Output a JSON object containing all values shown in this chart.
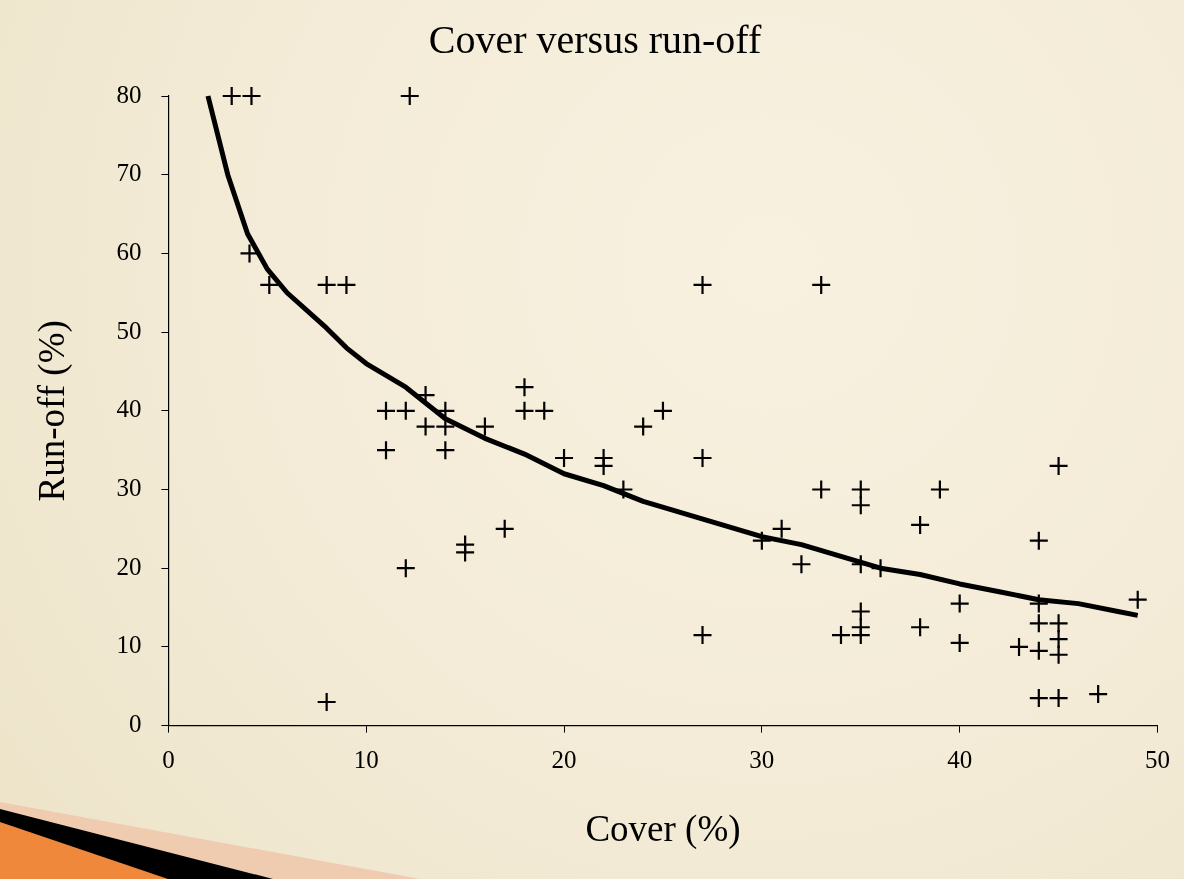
{
  "chart_data": {
    "type": "scatter",
    "title": "Cover versus run-off",
    "xlabel": "Cover (%)",
    "ylabel": "Run-off (%)",
    "xlim": [
      0,
      50
    ],
    "xticks": [
      0,
      10,
      20,
      30,
      40,
      50
    ],
    "ylim": [
      0,
      80
    ],
    "yticks": [
      0,
      10,
      20,
      30,
      40,
      50,
      60,
      70,
      80
    ],
    "grid": false,
    "legend": false,
    "series": [
      {
        "type": "scatter",
        "color": "#000000",
        "marker": "cross",
        "x": [
          3.2,
          4.2,
          12.2,
          4.1,
          5.1,
          8,
          9,
          11,
          12,
          13,
          14,
          13,
          14,
          11,
          14,
          16,
          18,
          18,
          19,
          20,
          22,
          22,
          23,
          24,
          25,
          27,
          27,
          33,
          12,
          15,
          15,
          17,
          8,
          27,
          30,
          31,
          32,
          33,
          34,
          35,
          35,
          35,
          35,
          35,
          35,
          36,
          38,
          38,
          39,
          40,
          40,
          43,
          44,
          44,
          44,
          44,
          44,
          45,
          45,
          45,
          45,
          45,
          47,
          49
        ],
        "values": [
          80,
          80,
          80,
          60,
          56,
          56,
          56,
          40,
          40,
          42,
          40,
          38,
          38,
          35,
          35,
          38,
          43,
          40,
          40,
          34,
          34,
          33,
          30,
          38,
          40,
          56,
          34,
          56,
          20,
          23,
          22,
          25,
          3,
          11.5,
          23.5,
          25,
          20.5,
          30,
          11.5,
          30,
          28,
          20.5,
          14.5,
          12.5,
          11.5,
          20,
          25.5,
          12.5,
          30,
          15.5,
          10.5,
          10,
          23.5,
          15.5,
          13,
          9.5,
          3.5,
          33,
          13,
          11,
          9,
          3.5,
          4,
          16
        ]
      },
      {
        "type": "line",
        "color": "#000000",
        "marker": "none",
        "line_style": "solid",
        "x": [
          2,
          3,
          4,
          5,
          6,
          8,
          9,
          10,
          12,
          14,
          16,
          18,
          20,
          22,
          24,
          26,
          28,
          30,
          32,
          34,
          36,
          38,
          40,
          42,
          44,
          46,
          48,
          49
        ],
        "values": [
          80,
          70,
          62.5,
          58,
          55,
          50.5,
          48,
          46,
          43,
          39,
          36.5,
          34.5,
          32,
          30.5,
          28.5,
          27,
          25.5,
          24,
          23,
          21.5,
          20,
          19.2,
          18,
          17,
          16,
          15.5,
          14.5,
          14
        ]
      }
    ]
  }
}
